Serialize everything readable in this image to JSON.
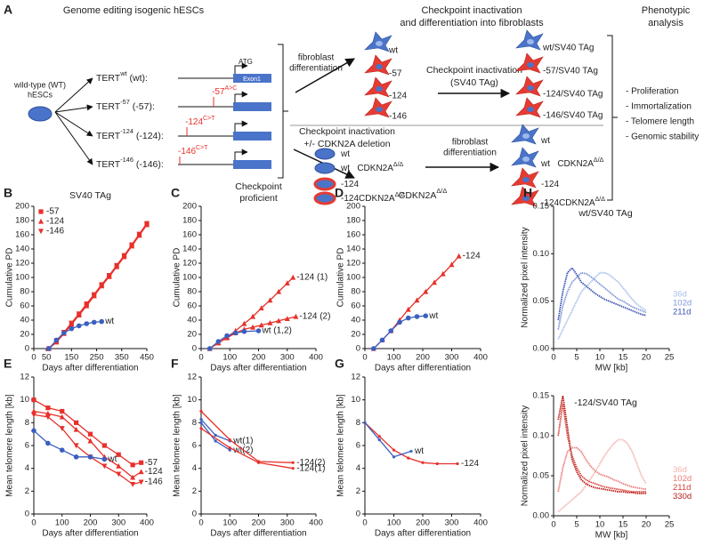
{
  "panel_a": {
    "label": "A",
    "header_left": "Genome editing isogenic hESCs",
    "header_middle": [
      "Checkpoint inactivation",
      "and differentiation into fibroblasts"
    ],
    "header_right": [
      "Phenotypic",
      "analysis"
    ],
    "wt_cells": [
      "wild-type (WT)",
      "hESCs"
    ],
    "tert_rows": [
      [
        "TERT",
        {
          "sup": "wt"
        },
        " (wt):"
      ],
      [
        "TERT",
        {
          "sup": "-57"
        },
        " (-57):"
      ],
      [
        "TERT",
        {
          "sup": "-124"
        },
        " (-124):"
      ],
      [
        "TERT",
        {
          "sup": "-146"
        },
        " (-146):"
      ]
    ],
    "gene": {
      "atg": "ATG",
      "exon": "Exon1"
    },
    "mutations": [
      [
        "-57",
        {
          "sup": "A>C"
        }
      ],
      [
        "-124",
        {
          "sup": "C>T"
        }
      ],
      [
        "-146",
        {
          "sup": "C>T"
        }
      ]
    ],
    "diff_label": [
      "fibroblast",
      "differentiation"
    ],
    "fibroblasts": [
      "wt",
      "-57",
      "-124",
      "-146"
    ],
    "sv40_label": [
      "Checkpoint inactivation",
      "(SV40 TAg)"
    ],
    "sv40_lines": [
      "wt/SV40 TAg",
      "-57/SV40 TAg",
      "-124/SV40 TAg",
      "-146/SV40 TAg"
    ],
    "cdkn_label": [
      "Checkpoint inactivation",
      "+/- CDKN2A deletion"
    ],
    "cdkn_lines": [
      [
        "wt"
      ],
      [
        "wt   CDKN2A",
        {
          "sup": "Δ/Δ"
        }
      ],
      [
        "-124"
      ],
      [
        "-124CDKN2A",
        {
          "sup": "Δ/Δ"
        }
      ]
    ],
    "diff_label_2": [
      "fibroblast",
      "differentiation"
    ],
    "cdkn_fibroblasts": [
      [
        "wt"
      ],
      [
        "wt   CDKN2A",
        {
          "sup": "Δ/Δ"
        }
      ],
      [
        "-124"
      ],
      [
        "-124CDKN2A",
        {
          "sup": "Δ/Δ"
        }
      ]
    ],
    "phenotypes": [
      "- Proliferation",
      "- Immortalization",
      "- Telomere length",
      "- Genomic stability"
    ]
  },
  "chart_data": [
    {
      "type": "line",
      "panel": "B",
      "title": "SV40 TAg",
      "xlabel": "Days after differentiation",
      "ylabel": "Cumulative PD",
      "xlim": [
        0,
        450
      ],
      "xticks": [
        0,
        50,
        150,
        250,
        350,
        450
      ],
      "ylim": [
        0,
        200
      ],
      "yticks": [
        0,
        20,
        40,
        60,
        80,
        100,
        120,
        140,
        160,
        180,
        200
      ],
      "legend": "upper left",
      "series": [
        {
          "name": "-57",
          "color": "#e8302a",
          "marker": "square",
          "label": "legend",
          "x": [
            60,
            90,
            120,
            150,
            180,
            210,
            240,
            270,
            300,
            330,
            360,
            390,
            420,
            450
          ],
          "values": [
            0,
            10,
            22,
            35,
            48,
            62,
            75,
            89,
            102,
            116,
            130,
            145,
            160,
            175
          ]
        },
        {
          "name": "-124",
          "color": "#e8302a",
          "marker": "triangle",
          "label": "legend",
          "x": [
            60,
            90,
            120,
            150,
            180,
            210,
            240,
            270,
            300,
            330,
            360,
            390,
            420,
            450
          ],
          "values": [
            0,
            9,
            21,
            34,
            47,
            60,
            74,
            88,
            101,
            115,
            129,
            144,
            159,
            174
          ]
        },
        {
          "name": "-146",
          "color": "#e8302a",
          "marker": "triangle-down",
          "label": "legend",
          "x": [
            60,
            90,
            120,
            150,
            180,
            210,
            240,
            270,
            300,
            330,
            360,
            390,
            420,
            450
          ],
          "values": [
            0,
            11,
            23,
            36,
            49,
            63,
            76,
            90,
            103,
            117,
            131,
            146,
            161,
            176
          ]
        },
        {
          "name": "wt",
          "color": "#3b5fc0",
          "marker": "circle",
          "label": "inline",
          "x": [
            60,
            90,
            120,
            150,
            180,
            210,
            240,
            270
          ],
          "values": [
            0,
            12,
            22,
            28,
            32,
            35,
            37,
            38
          ]
        }
      ]
    },
    {
      "type": "line",
      "panel": "C",
      "title": "Checkpoint",
      "subtitle": "proficient",
      "xlabel": "Days after differentiation",
      "ylabel": "Cumulative PD",
      "xlim": [
        0,
        400
      ],
      "xticks": [
        0,
        100,
        200,
        300,
        400
      ],
      "ylim": [
        0,
        200
      ],
      "yticks": [
        0,
        20,
        40,
        60,
        80,
        100,
        120,
        140,
        160,
        180,
        200
      ],
      "series": [
        {
          "name": "-124 (1)",
          "color": "#e8302a",
          "marker": "triangle",
          "label": "inline",
          "x": [
            30,
            60,
            90,
            120,
            150,
            180,
            210,
            240,
            270,
            300,
            320
          ],
          "values": [
            0,
            8,
            16,
            25,
            35,
            45,
            57,
            68,
            80,
            92,
            100
          ]
        },
        {
          "name": "-124 (2)",
          "color": "#e8302a",
          "marker": "triangle",
          "label": "inline",
          "x": [
            30,
            60,
            90,
            120,
            150,
            180,
            210,
            240,
            270,
            300,
            330
          ],
          "values": [
            0,
            8,
            15,
            22,
            27,
            30,
            33,
            36,
            39,
            42,
            45
          ]
        },
        {
          "name": "wt (1,2)",
          "color": "#3b5fc0",
          "marker": "circle",
          "label": "inline",
          "x": [
            30,
            60,
            90,
            120,
            150,
            200
          ],
          "values": [
            0,
            10,
            18,
            22,
            24,
            25
          ]
        }
      ]
    },
    {
      "type": "line",
      "panel": "D",
      "title": [
        "CDKN2A",
        {
          "sup": "Δ/Δ"
        }
      ],
      "xlabel": "Days after differentiation",
      "ylabel": "Cumulative PD",
      "xlim": [
        0,
        400
      ],
      "xticks": [
        0,
        100,
        200,
        300,
        400
      ],
      "ylim": [
        0,
        200
      ],
      "yticks": [
        0,
        20,
        40,
        60,
        80,
        100,
        120,
        140,
        160,
        180,
        200
      ],
      "series": [
        {
          "name": "-124",
          "color": "#e8302a",
          "marker": "triangle",
          "label": "inline",
          "x": [
            30,
            60,
            90,
            120,
            150,
            180,
            210,
            240,
            270,
            300,
            325
          ],
          "values": [
            0,
            12,
            25,
            40,
            55,
            68,
            80,
            93,
            105,
            118,
            130
          ]
        },
        {
          "name": "wt",
          "color": "#3b5fc0",
          "marker": "circle",
          "label": "inline",
          "x": [
            30,
            60,
            90,
            120,
            150,
            180,
            210
          ],
          "values": [
            0,
            12,
            25,
            37,
            43,
            45,
            46
          ]
        }
      ]
    },
    {
      "type": "line",
      "panel": "E",
      "xlabel": "Days after differentiation",
      "ylabel": "Mean telomere length [kb]",
      "xlim": [
        0,
        400
      ],
      "xticks": [
        0,
        100,
        200,
        300,
        400
      ],
      "ylim": [
        0,
        12
      ],
      "yticks": [
        0,
        2,
        4,
        6,
        8,
        10,
        12
      ],
      "series": [
        {
          "name": "-57",
          "color": "#e8302a",
          "marker": "square",
          "label": "inline",
          "x": [
            0,
            50,
            100,
            150,
            200,
            250,
            300,
            350,
            380
          ],
          "values": [
            10,
            9.3,
            9,
            8,
            7,
            6,
            5.2,
            4.3,
            4.5
          ]
        },
        {
          "name": "-124",
          "color": "#e8302a",
          "marker": "triangle",
          "label": "inline",
          "x": [
            0,
            50,
            100,
            150,
            200,
            250,
            300,
            350,
            380
          ],
          "values": [
            9,
            8.8,
            8.5,
            7.4,
            6.4,
            5,
            4.2,
            3.2,
            3.7
          ]
        },
        {
          "name": "-146",
          "color": "#e8302a",
          "marker": "triangle-down",
          "label": "inline",
          "x": [
            0,
            50,
            100,
            150,
            200,
            250,
            300,
            350,
            380
          ],
          "values": [
            8.7,
            8.5,
            7.5,
            6,
            5,
            4.2,
            3.5,
            2.6,
            2.8
          ]
        },
        {
          "name": "wt",
          "color": "#3b5fc0",
          "marker": "circle",
          "label": "inline",
          "x": [
            0,
            50,
            100,
            150,
            200,
            250
          ],
          "values": [
            7.3,
            6.2,
            5.6,
            5,
            5,
            4.8
          ]
        }
      ]
    },
    {
      "type": "line",
      "panel": "F",
      "xlabel": "Days after differentiation",
      "ylabel": "Mean telomere length [kb]",
      "xlim": [
        0,
        400
      ],
      "xticks": [
        0,
        100,
        200,
        300,
        400
      ],
      "ylim": [
        0,
        12
      ],
      "yticks": [
        0,
        2,
        4,
        6,
        8,
        10,
        12
      ],
      "series": [
        {
          "name": "wt(1)",
          "color": "#3b5fc0",
          "marker": "dot",
          "label": "inline",
          "x": [
            0,
            50,
            100
          ],
          "values": [
            8.3,
            6.9,
            6.4
          ]
        },
        {
          "name": "wt(2)",
          "color": "#3b5fc0",
          "marker": "dot",
          "label": "inline",
          "x": [
            0,
            50,
            100
          ],
          "values": [
            8,
            6.4,
            5.6
          ]
        },
        {
          "name": "-124(2)",
          "color": "#e8302a",
          "marker": "dot",
          "label": "inline",
          "x": [
            0,
            100,
            200,
            320
          ],
          "values": [
            9,
            6.5,
            4.6,
            4.5
          ]
        },
        {
          "name": "-124(1)",
          "color": "#e8302a",
          "marker": "dot",
          "label": "inline",
          "x": [
            0,
            100,
            200,
            320
          ],
          "values": [
            7.5,
            5.8,
            4.5,
            4
          ]
        }
      ]
    },
    {
      "type": "line",
      "panel": "G",
      "xlabel": "Days after differentiation",
      "ylabel": "Mean telomere length [kb]",
      "xlim": [
        0,
        400
      ],
      "xticks": [
        0,
        100,
        200,
        300,
        400
      ],
      "ylim": [
        0,
        12
      ],
      "yticks": [
        0,
        2,
        4,
        6,
        8,
        10,
        12
      ],
      "series": [
        {
          "name": "-124",
          "color": "#e8302a",
          "marker": "dot",
          "label": "inline",
          "x": [
            0,
            50,
            100,
            150,
            200,
            250,
            320
          ],
          "values": [
            8,
            6.8,
            5.6,
            4.9,
            4.5,
            4.4,
            4.4
          ]
        },
        {
          "name": "wt",
          "color": "#3b5fc0",
          "marker": "dot",
          "label": "inline",
          "x": [
            0,
            50,
            100,
            160
          ],
          "values": [
            8,
            6.5,
            5,
            5.5
          ]
        }
      ]
    },
    {
      "type": "line",
      "panel": "H",
      "title": "wt/SV40 TAg",
      "xlabel": "MW [kb]",
      "ylabel": "Normalized pixel intensity",
      "xlim": [
        0,
        25
      ],
      "xticks": [
        0,
        5,
        10,
        15,
        20,
        25
      ],
      "ylim": [
        0,
        0.15
      ],
      "yticks": [
        {
          "value": 0,
          "label": "0.00"
        },
        {
          "value": 0.05,
          "label": "0.05"
        },
        {
          "value": 0.1,
          "label": "0.10"
        },
        {
          "value": 0.15,
          "label": "0.15"
        }
      ],
      "legend": "right",
      "x": [
        1,
        2,
        3,
        4,
        5,
        6,
        7,
        8,
        9,
        10,
        11,
        12,
        13,
        14,
        15,
        16,
        17,
        18,
        19,
        20
      ],
      "series": [
        {
          "name": "36d",
          "color": "#a9c0e8",
          "values": [
            0.01,
            0.02,
            0.03,
            0.04,
            0.05,
            0.06,
            0.065,
            0.07,
            0.075,
            0.08,
            0.08,
            0.078,
            0.074,
            0.07,
            0.064,
            0.058,
            0.052,
            0.047,
            0.043,
            0.04
          ]
        },
        {
          "name": "102d",
          "color": "#7f95d8",
          "values": [
            0.02,
            0.045,
            0.06,
            0.07,
            0.075,
            0.08,
            0.079,
            0.076,
            0.072,
            0.068,
            0.064,
            0.06,
            0.056,
            0.052,
            0.05,
            0.047,
            0.044,
            0.042,
            0.04,
            0.038
          ]
        },
        {
          "name": "211d",
          "color": "#3b55b5",
          "values": [
            0.03,
            0.06,
            0.08,
            0.085,
            0.078,
            0.07,
            0.066,
            0.062,
            0.058,
            0.055,
            0.052,
            0.05,
            0.048,
            0.046,
            0.044,
            0.042,
            0.04,
            0.038,
            0.036,
            0.035
          ]
        }
      ]
    },
    {
      "type": "line",
      "title": "-124/SV40 TAg",
      "xlabel": "MW [kb]",
      "ylabel": "Normalized pixel intensity",
      "xlim": [
        0,
        25
      ],
      "xticks": [
        0,
        5,
        10,
        15,
        20,
        25
      ],
      "ylim": [
        0,
        0.15
      ],
      "yticks": [
        {
          "value": 0,
          "label": "0.00"
        },
        {
          "value": 0.05,
          "label": "0.05"
        },
        {
          "value": 0.1,
          "label": "0.10"
        },
        {
          "value": 0.15,
          "label": "0.15"
        }
      ],
      "legend": "right",
      "x": [
        1,
        2,
        3,
        4,
        5,
        6,
        7,
        8,
        9,
        10,
        11,
        12,
        13,
        14,
        15,
        16,
        17,
        18,
        19,
        20
      ],
      "series": [
        {
          "name": "36d",
          "color": "#f4b4b0",
          "values": [
            0.005,
            0.01,
            0.015,
            0.02,
            0.025,
            0.03,
            0.038,
            0.046,
            0.055,
            0.065,
            0.075,
            0.083,
            0.09,
            0.095,
            0.095,
            0.09,
            0.08,
            0.065,
            0.05,
            0.04
          ]
        },
        {
          "name": "102d",
          "color": "#ea7b77",
          "values": [
            0.03,
            0.06,
            0.08,
            0.085,
            0.085,
            0.08,
            0.07,
            0.062,
            0.056,
            0.052,
            0.05,
            0.048,
            0.045,
            0.043,
            0.04,
            0.038,
            0.036,
            0.035,
            0.034,
            0.033
          ]
        },
        {
          "name": "211d",
          "color": "#d9403a",
          "values": [
            0.1,
            0.14,
            0.1,
            0.075,
            0.06,
            0.05,
            0.045,
            0.042,
            0.04,
            0.038,
            0.036,
            0.035,
            0.034,
            0.033,
            0.032,
            0.031,
            0.03,
            0.03,
            0.03,
            0.03
          ]
        },
        {
          "name": "330d",
          "color": "#b8201c",
          "values": [
            0.12,
            0.15,
            0.11,
            0.07,
            0.055,
            0.045,
            0.04,
            0.037,
            0.035,
            0.034,
            0.033,
            0.032,
            0.031,
            0.03,
            0.03,
            0.029,
            0.029,
            0.028,
            0.028,
            0.028
          ]
        }
      ]
    }
  ]
}
